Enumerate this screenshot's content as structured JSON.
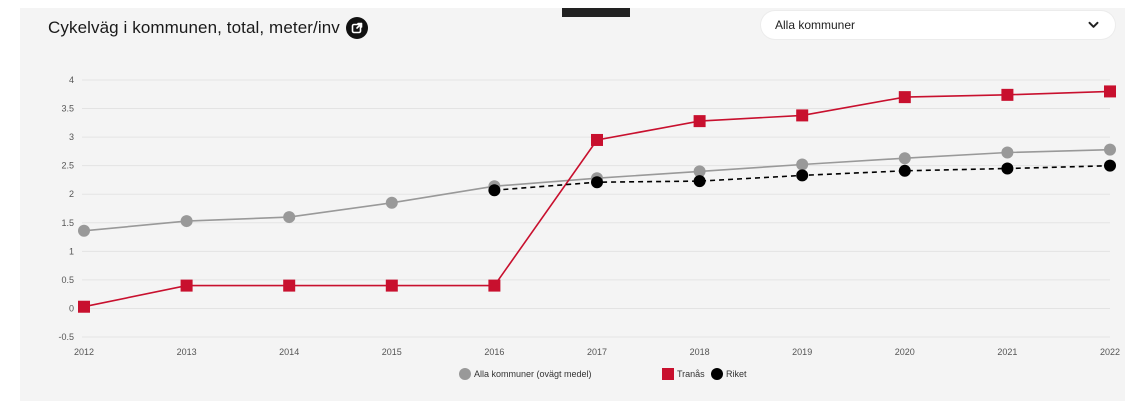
{
  "header": {
    "title": "Cykelväg i kommunen, total, meter/inv",
    "external_link_icon": "external-link-icon"
  },
  "dropdown": {
    "selected": "Alla kommuner",
    "icon": "chevron-down-icon"
  },
  "colors": {
    "tranas": "#c8102e",
    "alla": "#999999",
    "riket": "#000000",
    "grid": "#e3e3e3",
    "axis_text": "#555555"
  },
  "chart_data": {
    "type": "line",
    "title": "Cykelväg i kommunen, total, meter/inv",
    "x": [
      2012,
      2013,
      2014,
      2015,
      2016,
      2017,
      2018,
      2019,
      2020,
      2021,
      2022
    ],
    "x_tick_labels": [
      "2012",
      "2013",
      "2014",
      "2015",
      "2016",
      "2017",
      "2018",
      "2019",
      "2020",
      "2021",
      "2022"
    ],
    "ylim": [
      -0.5,
      4
    ],
    "y_ticks": [
      4,
      3.5,
      3,
      2.5,
      2,
      1.5,
      1,
      0.5,
      0,
      -0.5
    ],
    "y_tick_labels": [
      "4",
      "3.5",
      "3",
      "2.5",
      "2",
      "1.5",
      "1",
      "0.5",
      "0",
      "-0.5"
    ],
    "grid": true,
    "legend_position": "bottom",
    "series": [
      {
        "name": "Alla kommuner (ovägt medel)",
        "marker": "circle",
        "line": "solid",
        "color": "#999999",
        "x": [
          2012,
          2013,
          2014,
          2015,
          2016,
          2017,
          2018,
          2019,
          2020,
          2021,
          2022
        ],
        "values": [
          1.36,
          1.53,
          1.6,
          1.85,
          2.14,
          2.28,
          2.4,
          2.52,
          2.63,
          2.73,
          2.78
        ]
      },
      {
        "name": "Tranås",
        "marker": "square",
        "line": "solid",
        "color": "#c8102e",
        "x": [
          2012,
          2013,
          2014,
          2015,
          2016,
          2017,
          2018,
          2019,
          2020,
          2021,
          2022
        ],
        "values": [
          0.03,
          0.4,
          0.4,
          0.4,
          0.4,
          2.95,
          3.28,
          3.38,
          3.7,
          3.74,
          3.8
        ]
      },
      {
        "name": "Riket",
        "marker": "circle",
        "line": "dashed",
        "color": "#000000",
        "x": [
          2016,
          2017,
          2018,
          2019,
          2020,
          2021,
          2022
        ],
        "values": [
          2.07,
          2.21,
          2.23,
          2.33,
          2.41,
          2.45,
          2.5
        ]
      }
    ]
  }
}
